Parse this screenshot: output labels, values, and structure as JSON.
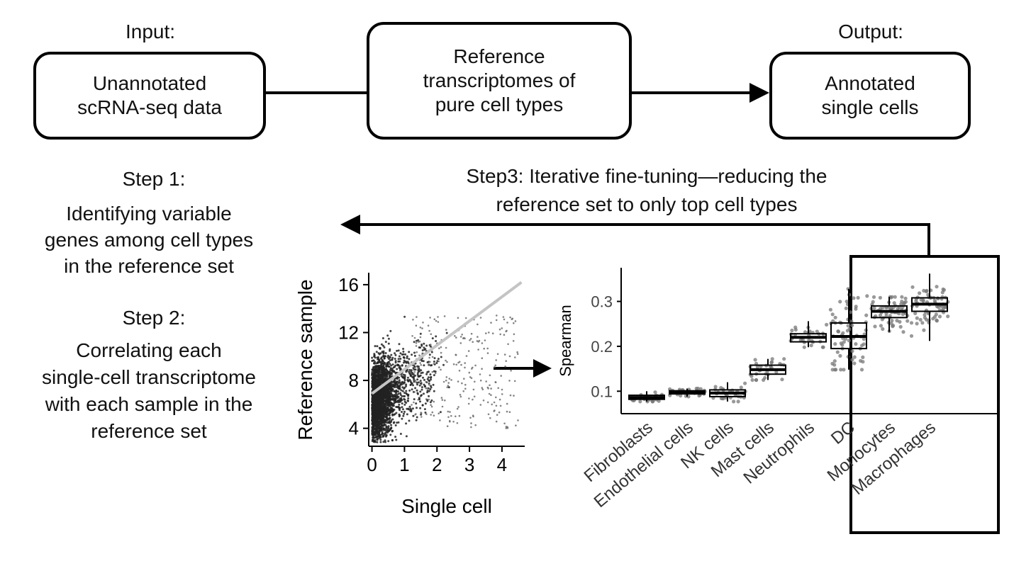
{
  "flow": {
    "input_label": "Input:",
    "output_label": "Output:",
    "input_box": "Unannotated\nscRNA-seq data",
    "reference_box": "Reference\ntranscriptomes of\npure cell types",
    "output_box": "Annotated\nsingle cells"
  },
  "steps": {
    "step1_title": "Step 1:",
    "step1_lines": [
      "Identifying variable",
      "genes among cell types",
      "in the reference set"
    ],
    "step2_title": "Step 2:",
    "step2_lines": [
      "Correlating each",
      "single-cell transcriptome",
      "with each sample in the",
      "reference set"
    ],
    "step3_lines": [
      "Step3: Iterative fine-tuning—reducing the",
      "reference set to only top cell types"
    ]
  },
  "chart_data": [
    {
      "type": "scatter",
      "xlabel": "Single cell",
      "ylabel": "Reference sample",
      "xlim": [
        -0.1,
        4.7
      ],
      "ylim": [
        2.5,
        17
      ],
      "x_ticks": [
        "0",
        "1",
        "2",
        "3",
        "4"
      ],
      "y_ticks": [
        "4",
        "8",
        "12",
        "16"
      ],
      "fit_line": {
        "x": [
          0,
          4.6
        ],
        "y": [
          6.9,
          16.2
        ]
      },
      "colors": {
        "points": "#222222",
        "fit": "#c4c4c4"
      }
    },
    {
      "type": "box",
      "ylabel": "Spearman",
      "ylim": [
        0.05,
        0.375
      ],
      "y_ticks": [
        "0.1",
        "0.2",
        "0.3"
      ],
      "categories": [
        "Fibroblasts",
        "Endothelial cells",
        "NK cells",
        "Mast cells",
        "Neutrophils",
        "DC",
        "Monocytes",
        "Macrophages"
      ],
      "boxes": [
        {
          "q1": 0.082,
          "median": 0.086,
          "q3": 0.091,
          "wlo": 0.077,
          "whi": 0.1
        },
        {
          "q1": 0.094,
          "median": 0.097,
          "q3": 0.101,
          "wlo": 0.088,
          "whi": 0.106
        },
        {
          "q1": 0.088,
          "median": 0.096,
          "q3": 0.103,
          "wlo": 0.077,
          "whi": 0.12
        },
        {
          "q1": 0.138,
          "median": 0.148,
          "q3": 0.158,
          "wlo": 0.125,
          "whi": 0.172
        },
        {
          "q1": 0.21,
          "median": 0.22,
          "q3": 0.228,
          "wlo": 0.198,
          "whi": 0.256
        },
        {
          "q1": 0.195,
          "median": 0.222,
          "q3": 0.252,
          "wlo": 0.148,
          "whi": 0.328
        },
        {
          "q1": 0.264,
          "median": 0.278,
          "q3": 0.29,
          "wlo": 0.232,
          "whi": 0.31
        },
        {
          "q1": 0.278,
          "median": 0.294,
          "q3": 0.308,
          "wlo": 0.212,
          "whi": 0.362
        }
      ],
      "highlighted": [
        "DC",
        "Monocytes",
        "Macrophages"
      ]
    }
  ]
}
